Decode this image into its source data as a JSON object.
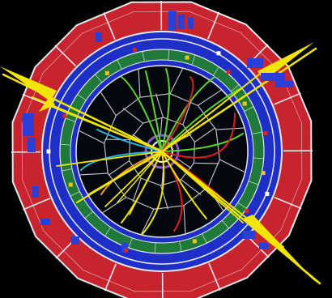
{
  "colors": {
    "background": "#000000",
    "outer_calorimeter": "#c8242d",
    "cell_lines": "#e8e8f0",
    "blue_ring": "#1e2fc8",
    "green_ring": "#1f7a3a",
    "chamber_fill": "#05080c",
    "chamber_grid": "#c9c9d6",
    "beam_pipe_outer": "#8a5ac8",
    "beam_pipe_inner": "#ffffff",
    "track_yellow": "#f2e600",
    "track_green": "#5bd62a",
    "track_red": "#e0201a",
    "track_cyan": "#29b6e6",
    "track_orange": "#f0a020",
    "hit_blue": "#2a3ed8"
  },
  "icons": [
    "particle-collision-event-display"
  ]
}
